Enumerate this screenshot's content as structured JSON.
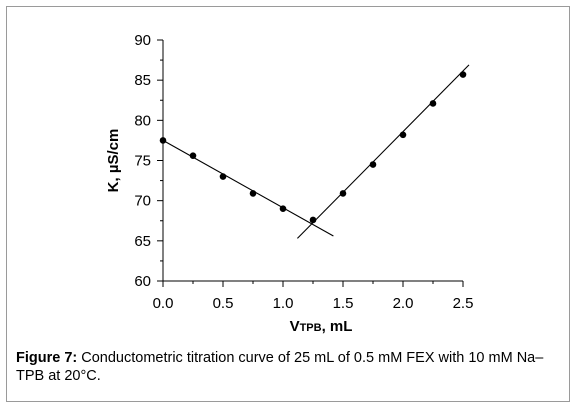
{
  "figure": {
    "caption_label": "Figure 7:",
    "caption_text": " Conductometric titration curve of 25 mL of 0.5 mM FEX with 10 mM Na–TPB at 20°C."
  },
  "chart_data": {
    "type": "scatter",
    "title": "",
    "xlabel": {
      "main": "V",
      "sub": "TPB",
      "rest": ", mL"
    },
    "ylabel": "K, µS/cm",
    "xlim": [
      0.0,
      2.5
    ],
    "ylim": [
      60,
      90
    ],
    "x_ticks": [
      "0.0",
      "0.5",
      "1.0",
      "1.5",
      "2.0",
      "2.5"
    ],
    "y_ticks": [
      "60",
      "65",
      "70",
      "75",
      "80",
      "85",
      "90"
    ],
    "grid": false,
    "series": [
      {
        "x": [
          0.0,
          0.25,
          0.5,
          0.75,
          1.0,
          1.25,
          1.5,
          1.75,
          2.0,
          2.25,
          2.5
        ],
        "y": [
          77.5,
          75.6,
          73.0,
          70.9,
          69.0,
          67.6,
          70.9,
          74.5,
          78.2,
          82.1,
          85.7
        ]
      }
    ],
    "fit_lines": [
      {
        "x": [
          0.0,
          1.42
        ],
        "y": [
          77.5,
          65.6
        ]
      },
      {
        "x": [
          1.12,
          2.55
        ],
        "y": [
          65.3,
          86.9
        ]
      }
    ],
    "colors": {
      "marker": "#000000",
      "line": "#000000"
    }
  }
}
